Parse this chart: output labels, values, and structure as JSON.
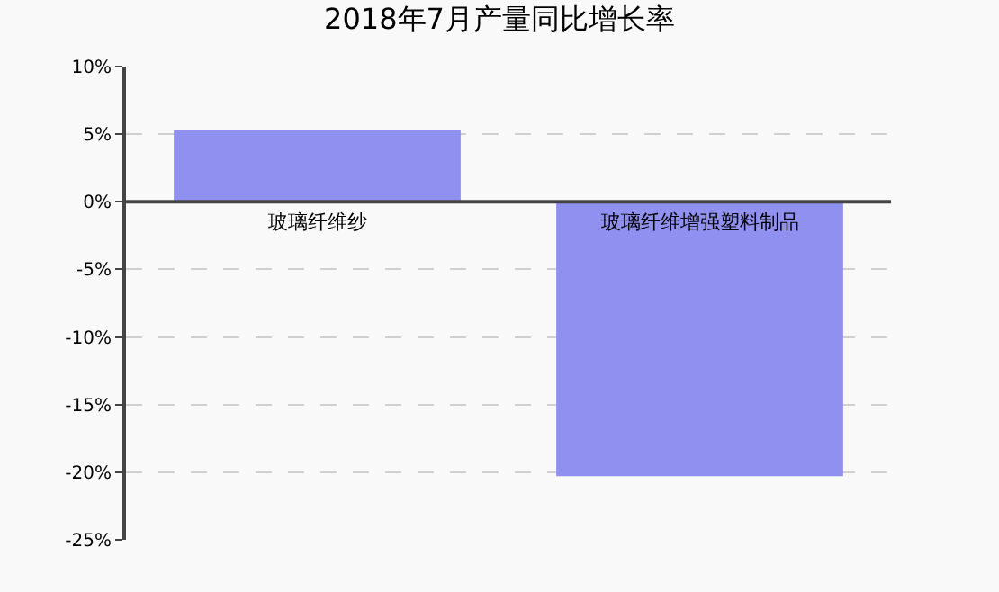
{
  "chart_data": {
    "type": "bar",
    "title": "2018年7月产量同比增长率",
    "categories": [
      "玻璃纤维纱",
      "玻璃纤维增强塑料制品"
    ],
    "values": [
      5.3,
      -20.3
    ],
    "color": "#9090f0",
    "ylim": [
      -25,
      10
    ],
    "yticks": [
      {
        "value": -25,
        "label": "-25%"
      },
      {
        "value": -20,
        "label": "-20%"
      },
      {
        "value": -15,
        "label": "-15%"
      },
      {
        "value": -10,
        "label": "-10%"
      },
      {
        "value": -5,
        "label": "-5%"
      },
      {
        "value": 0,
        "label": "0%"
      },
      {
        "value": 5,
        "label": "5%"
      },
      {
        "value": 10,
        "label": "10%"
      }
    ],
    "grid": "y"
  }
}
